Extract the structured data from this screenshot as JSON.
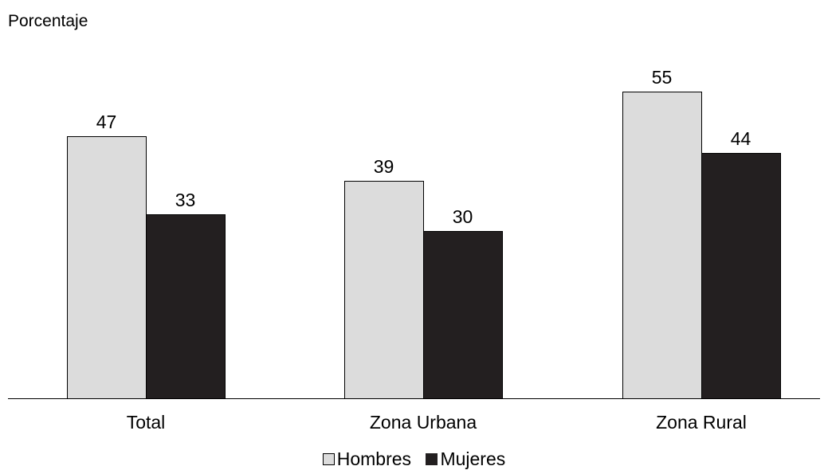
{
  "chart_data": {
    "type": "bar",
    "ylabel": "Porcentaje",
    "categories": [
      "Total",
      "Zona Urbana",
      "Zona Rural"
    ],
    "series": [
      {
        "name": "Hombres",
        "values": [
          47,
          39,
          55
        ],
        "color": "#dcdcdc"
      },
      {
        "name": "Mujeres",
        "values": [
          33,
          30,
          44
        ],
        "color": "#231f20"
      }
    ],
    "ylim": [
      0,
      60
    ],
    "grid": false,
    "legend": "bottom-center"
  }
}
